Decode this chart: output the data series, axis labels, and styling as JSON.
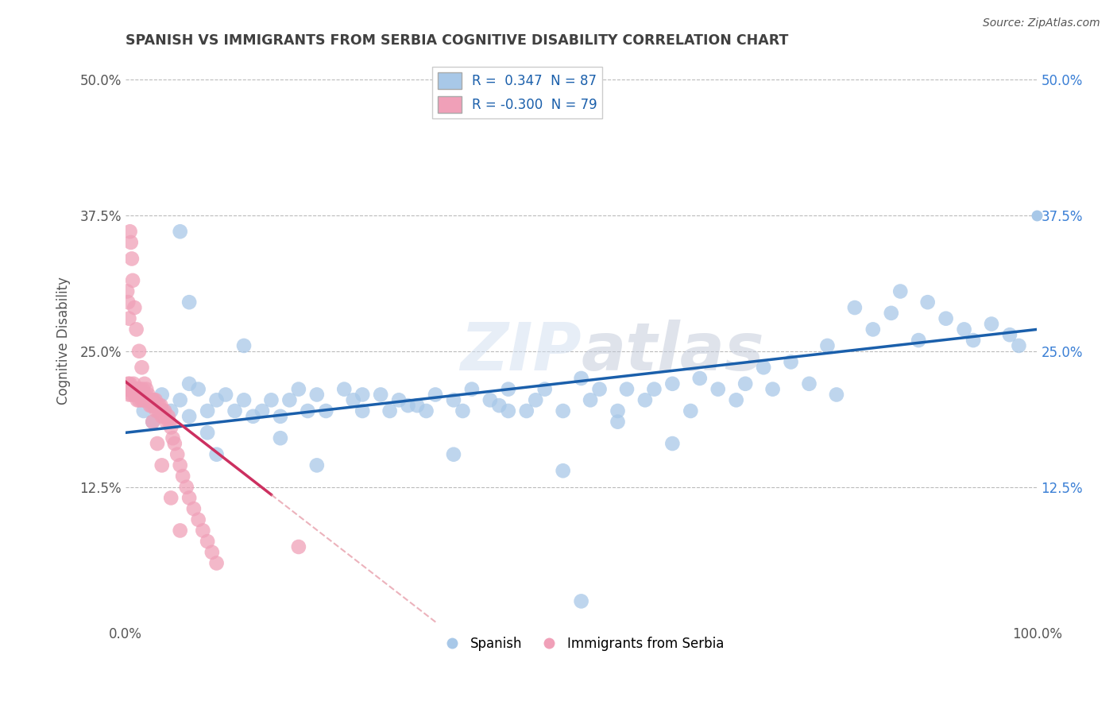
{
  "title": "SPANISH VS IMMIGRANTS FROM SERBIA COGNITIVE DISABILITY CORRELATION CHART",
  "source": "Source: ZipAtlas.com",
  "ylabel": "Cognitive Disability",
  "xlim": [
    0,
    1.0
  ],
  "ylim": [
    0,
    0.52
  ],
  "ytick_vals": [
    0.125,
    0.25,
    0.375,
    0.5
  ],
  "ytick_labels": [
    "12.5%",
    "25.0%",
    "37.5%",
    "50.0%"
  ],
  "watermark": "ZIPatlas",
  "legend_R_blue": " 0.347",
  "legend_N_blue": "87",
  "legend_R_pink": "-0.300",
  "legend_N_pink": "79",
  "blue_color": "#A8C8E8",
  "pink_color": "#F0A0B8",
  "blue_line_color": "#1A5FAB",
  "pink_line_color": "#CC3060",
  "pink_line_dashed_color": "#E08090",
  "background_color": "#FFFFFF",
  "grid_color": "#BBBBBB",
  "title_color": "#404040",
  "blue_scatter_x": [
    0.02,
    0.03,
    0.04,
    0.05,
    0.06,
    0.07,
    0.07,
    0.08,
    0.09,
    0.1,
    0.11,
    0.12,
    0.13,
    0.14,
    0.15,
    0.16,
    0.17,
    0.18,
    0.19,
    0.2,
    0.21,
    0.22,
    0.24,
    0.25,
    0.26,
    0.28,
    0.29,
    0.3,
    0.32,
    0.33,
    0.34,
    0.36,
    0.37,
    0.38,
    0.4,
    0.41,
    0.42,
    0.44,
    0.45,
    0.46,
    0.48,
    0.5,
    0.51,
    0.52,
    0.54,
    0.55,
    0.57,
    0.58,
    0.6,
    0.62,
    0.63,
    0.65,
    0.67,
    0.68,
    0.7,
    0.71,
    0.73,
    0.75,
    0.77,
    0.78,
    0.8,
    0.82,
    0.84,
    0.85,
    0.87,
    0.88,
    0.9,
    0.92,
    0.93,
    0.95,
    0.97,
    0.98,
    0.06,
    0.07,
    0.09,
    0.1,
    0.13,
    0.17,
    0.21,
    0.26,
    0.31,
    0.36,
    0.42,
    0.48,
    0.54,
    0.6,
    0.5
  ],
  "blue_scatter_y": [
    0.195,
    0.185,
    0.21,
    0.195,
    0.205,
    0.19,
    0.22,
    0.215,
    0.195,
    0.205,
    0.21,
    0.195,
    0.205,
    0.19,
    0.195,
    0.205,
    0.19,
    0.205,
    0.215,
    0.195,
    0.21,
    0.195,
    0.215,
    0.205,
    0.195,
    0.21,
    0.195,
    0.205,
    0.2,
    0.195,
    0.21,
    0.205,
    0.195,
    0.215,
    0.205,
    0.2,
    0.215,
    0.195,
    0.205,
    0.215,
    0.195,
    0.225,
    0.205,
    0.215,
    0.195,
    0.215,
    0.205,
    0.215,
    0.22,
    0.195,
    0.225,
    0.215,
    0.205,
    0.22,
    0.235,
    0.215,
    0.24,
    0.22,
    0.255,
    0.21,
    0.29,
    0.27,
    0.285,
    0.305,
    0.26,
    0.295,
    0.28,
    0.27,
    0.26,
    0.275,
    0.265,
    0.255,
    0.36,
    0.295,
    0.175,
    0.155,
    0.255,
    0.17,
    0.145,
    0.21,
    0.2,
    0.155,
    0.195,
    0.14,
    0.185,
    0.165,
    0.02
  ],
  "pink_scatter_x": [
    0.001,
    0.002,
    0.003,
    0.004,
    0.005,
    0.006,
    0.007,
    0.008,
    0.009,
    0.01,
    0.011,
    0.012,
    0.013,
    0.014,
    0.015,
    0.016,
    0.017,
    0.018,
    0.019,
    0.02,
    0.021,
    0.022,
    0.023,
    0.024,
    0.025,
    0.026,
    0.027,
    0.028,
    0.029,
    0.03,
    0.031,
    0.032,
    0.033,
    0.034,
    0.035,
    0.036,
    0.037,
    0.038,
    0.039,
    0.04,
    0.041,
    0.042,
    0.043,
    0.045,
    0.047,
    0.048,
    0.05,
    0.052,
    0.054,
    0.057,
    0.06,
    0.063,
    0.067,
    0.07,
    0.075,
    0.08,
    0.085,
    0.09,
    0.095,
    0.1,
    0.002,
    0.003,
    0.004,
    0.005,
    0.006,
    0.007,
    0.008,
    0.01,
    0.012,
    0.015,
    0.018,
    0.021,
    0.025,
    0.03,
    0.035,
    0.04,
    0.05,
    0.06,
    0.19
  ],
  "pink_scatter_y": [
    0.215,
    0.215,
    0.22,
    0.21,
    0.22,
    0.215,
    0.21,
    0.215,
    0.22,
    0.21,
    0.215,
    0.215,
    0.205,
    0.215,
    0.205,
    0.215,
    0.21,
    0.205,
    0.215,
    0.205,
    0.21,
    0.205,
    0.215,
    0.205,
    0.21,
    0.205,
    0.2,
    0.205,
    0.2,
    0.205,
    0.205,
    0.2,
    0.205,
    0.195,
    0.2,
    0.195,
    0.2,
    0.195,
    0.2,
    0.19,
    0.195,
    0.19,
    0.195,
    0.185,
    0.19,
    0.185,
    0.18,
    0.17,
    0.165,
    0.155,
    0.145,
    0.135,
    0.125,
    0.115,
    0.105,
    0.095,
    0.085,
    0.075,
    0.065,
    0.055,
    0.305,
    0.295,
    0.28,
    0.36,
    0.35,
    0.335,
    0.315,
    0.29,
    0.27,
    0.25,
    0.235,
    0.22,
    0.205,
    0.185,
    0.165,
    0.145,
    0.115,
    0.085,
    0.07
  ],
  "pink_line_x": [
    0.0,
    0.25
  ],
  "pink_line_y_start": 0.222,
  "pink_line_slope": -0.65,
  "blue_line_x": [
    0.0,
    1.0
  ],
  "blue_line_y_start": 0.175,
  "blue_line_slope": 0.095
}
